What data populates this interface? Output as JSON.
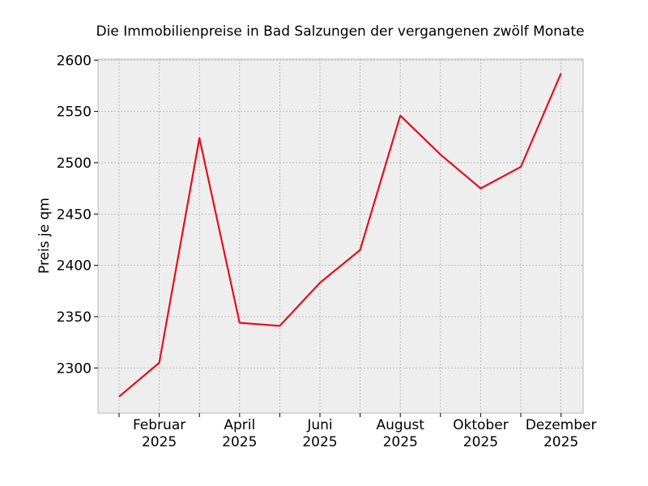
{
  "chart_data": {
    "type": "line",
    "title": "Die Immobilienpreise in Bad Salzungen der vergangenen zwölf Monate",
    "xlabel": "",
    "ylabel": "Preis je qm",
    "x": [
      "2025-01",
      "2025-02",
      "2025-03",
      "2025-04",
      "2025-05",
      "2025-06",
      "2025-07",
      "2025-08",
      "2025-09",
      "2025-10",
      "2025-11",
      "2025-12"
    ],
    "series": [
      {
        "values": [
          2272,
          2305,
          2524,
          2344,
          2341,
          2383,
          2415,
          2546,
          2508,
          2475,
          2496,
          2587
        ]
      }
    ],
    "x_tick_labels": [
      {
        "month": "2025-02",
        "line1": "Februar",
        "line2": "2025"
      },
      {
        "month": "2025-04",
        "line1": "April",
        "line2": "2025"
      },
      {
        "month": "2025-06",
        "line1": "Juni",
        "line2": "2025"
      },
      {
        "month": "2025-08",
        "line1": "August",
        "line2": "2025"
      },
      {
        "month": "2025-10",
        "line1": "Oktober",
        "line2": "2025"
      },
      {
        "month": "2025-12",
        "line1": "Dezember",
        "line2": "2025"
      }
    ],
    "y_ticks": [
      2300,
      2350,
      2400,
      2450,
      2500,
      2550,
      2600
    ],
    "ylim": [
      2256,
      2601
    ],
    "grid": true,
    "colors": {
      "line": "#e3101c",
      "plot_background": "#eeeeee",
      "grid": "#b0b0b0"
    }
  }
}
